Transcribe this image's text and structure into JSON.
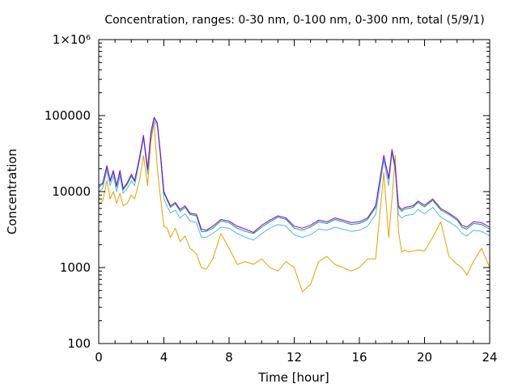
{
  "chart_data": {
    "type": "line",
    "title": "Concentration, ranges: 0-30 nm, 0-100 nm, 0-300 nm, total (5/9/1)",
    "xlabel": "Time [hour]",
    "ylabel": "Concentration",
    "xlim": [
      0,
      24
    ],
    "ylim": [
      100,
      1000000
    ],
    "yscale": "log",
    "xticks": [
      0,
      4,
      8,
      12,
      16,
      20,
      24
    ],
    "xtick_labels": [
      "0",
      "4",
      "8",
      "12",
      "16",
      "20",
      "24"
    ],
    "yticks": [
      100,
      1000,
      10000,
      100000,
      1000000
    ],
    "ytick_labels": [
      "100",
      "1000",
      "10000",
      "100000",
      "1×10⁶"
    ],
    "grid": false,
    "legend": "none",
    "x": [
      0,
      0.25,
      0.5,
      0.7,
      0.9,
      1.1,
      1.3,
      1.5,
      1.75,
      2.0,
      2.2,
      2.5,
      2.75,
      3.0,
      3.2,
      3.4,
      3.6,
      3.8,
      4.0,
      4.2,
      4.4,
      4.7,
      5.0,
      5.3,
      5.6,
      6.0,
      6.3,
      6.6,
      7.0,
      7.5,
      8.0,
      8.5,
      9.0,
      9.5,
      10.0,
      10.5,
      11.0,
      11.5,
      12.0,
      12.5,
      13.0,
      13.5,
      14.0,
      14.5,
      15.0,
      15.5,
      16.0,
      16.5,
      17.0,
      17.5,
      17.8,
      18.0,
      18.2,
      18.4,
      18.6,
      18.8,
      19.0,
      19.3,
      19.6,
      20.0,
      20.5,
      21.0,
      21.5,
      22.0,
      22.3,
      22.6,
      23.0,
      23.5,
      24.0
    ],
    "series": [
      {
        "color": "#9400d3",
        "values": [
          12000,
          13000,
          22000,
          14000,
          19000,
          12000,
          19000,
          11000,
          13000,
          17000,
          14000,
          28000,
          55000,
          20000,
          60000,
          95000,
          80000,
          30000,
          10000,
          8000,
          6500,
          7200,
          5800,
          6500,
          5200,
          5000,
          3200,
          3100,
          3500,
          4300,
          4100,
          3500,
          3200,
          2900,
          3600,
          4200,
          4800,
          4500,
          3500,
          3300,
          3600,
          4200,
          4000,
          4500,
          4200,
          3900,
          4000,
          4500,
          6500,
          30000,
          15000,
          36000,
          22000,
          6500,
          5800,
          6200,
          6300,
          6500,
          7500,
          6600,
          8000,
          6000,
          5200,
          4400,
          3600,
          3400,
          4000,
          3900,
          3400
        ]
      },
      {
        "color": "#009e73",
        "values": [
          11500,
          12500,
          21000,
          13500,
          18000,
          11500,
          18000,
          10500,
          12500,
          16000,
          13500,
          27000,
          53000,
          19000,
          58000,
          92000,
          78000,
          29000,
          9600,
          7700,
          6200,
          6900,
          5500,
          6200,
          5000,
          4800,
          3000,
          3000,
          3300,
          4100,
          3900,
          3300,
          3000,
          2800,
          3400,
          4000,
          4600,
          4300,
          3300,
          3100,
          3400,
          4000,
          3800,
          4300,
          4000,
          3700,
          3800,
          4300,
          6200,
          29000,
          14500,
          35000,
          21000,
          6200,
          5500,
          5900,
          6000,
          6200,
          7200,
          6300,
          7700,
          5700,
          5000,
          4200,
          3400,
          3200,
          3800,
          3700,
          3200
        ]
      },
      {
        "color": "#56b4e9",
        "values": [
          10000,
          11000,
          19000,
          12000,
          16000,
          10000,
          16000,
          9500,
          11000,
          14000,
          12000,
          25000,
          50000,
          17000,
          52000,
          85000,
          72000,
          26000,
          8000,
          6400,
          5200,
          5700,
          4500,
          5100,
          4100,
          3900,
          2500,
          2500,
          2800,
          3400,
          3300,
          2800,
          2500,
          2300,
          2800,
          3300,
          3700,
          3500,
          2700,
          2500,
          2700,
          3200,
          3100,
          3400,
          3200,
          3000,
          3100,
          3500,
          5000,
          26000,
          12000,
          32000,
          19000,
          5000,
          4500,
          4800,
          4900,
          5000,
          5800,
          5100,
          6200,
          4600,
          4000,
          3400,
          2800,
          2600,
          3100,
          3000,
          2600
        ]
      },
      {
        "color": "#e69f00",
        "values": [
          7000,
          7500,
          14000,
          8000,
          10000,
          7000,
          9500,
          6500,
          7000,
          9000,
          8000,
          14000,
          30000,
          12000,
          45000,
          80000,
          20000,
          8000,
          3500,
          3300,
          2500,
          3300,
          2200,
          2600,
          1800,
          1500,
          1000,
          950,
          1300,
          2800,
          1800,
          1100,
          1200,
          1100,
          1300,
          1000,
          900,
          1200,
          1000,
          480,
          600,
          1200,
          1400,
          1100,
          1000,
          900,
          1000,
          1300,
          1300,
          18000,
          2500,
          8000,
          30000,
          3000,
          1600,
          1700,
          1600,
          1650,
          1700,
          1650,
          2500,
          4000,
          1400,
          1100,
          1000,
          800,
          1200,
          1800,
          1000
        ]
      }
    ]
  }
}
